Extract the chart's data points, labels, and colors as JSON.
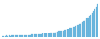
{
  "values": [
    40,
    42,
    38,
    45,
    43,
    46,
    44,
    48,
    46,
    50,
    48,
    52,
    50,
    54,
    52,
    56,
    54,
    58,
    57,
    62,
    60,
    65,
    63,
    68,
    66,
    72,
    70,
    76,
    75,
    82,
    80,
    88,
    87,
    95,
    94,
    103,
    102,
    112,
    112,
    123,
    123,
    135,
    136,
    149,
    150,
    165,
    167,
    183,
    186,
    204,
    208,
    228,
    234,
    257,
    264,
    290,
    298,
    327,
    338,
    371,
    385,
    422,
    440,
    483,
    505,
    555,
    582,
    640,
    672,
    739
  ],
  "bar_color": "#6cb8e0",
  "bar_edge_color": "#5aa8d0",
  "background_color": "#ffffff",
  "ylim_min": 0
}
